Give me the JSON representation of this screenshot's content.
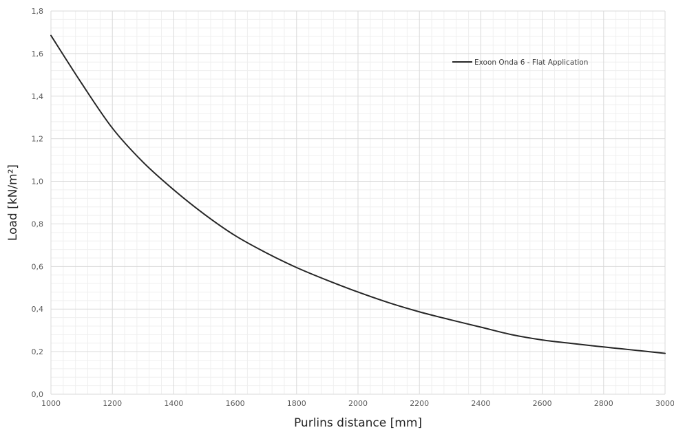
{
  "chart_data": {
    "type": "line",
    "title": "",
    "xlabel": "Purlins distance [mm]",
    "ylabel": "Load [kN/m²]",
    "xlim": [
      1000,
      3000
    ],
    "ylim": [
      0,
      1.8
    ],
    "x_ticks": [
      "1000",
      "1200",
      "1400",
      "1600",
      "1800",
      "2000",
      "2200",
      "2400",
      "2600",
      "2800",
      "3000"
    ],
    "y_ticks": [
      "0,0",
      "0,2",
      "0,4",
      "0,6",
      "0,8",
      "1,0",
      "1,2",
      "1,4",
      "1,6",
      "1,8"
    ],
    "grid": true,
    "legend_position": "top-right",
    "series": [
      {
        "name": "Exoon Onda 6 - Flat Application",
        "color": "#262626",
        "x": [
          1000,
          1100,
          1200,
          1300,
          1400,
          1500,
          1600,
          1700,
          1800,
          1900,
          2000,
          2100,
          2200,
          2300,
          2400,
          2500,
          2600,
          2700,
          2800,
          2900,
          3000
        ],
        "y": [
          1.685,
          1.46,
          1.25,
          1.09,
          0.96,
          0.845,
          0.745,
          0.665,
          0.595,
          0.535,
          0.48,
          0.43,
          0.387,
          0.35,
          0.315,
          0.28,
          0.255,
          0.238,
          0.222,
          0.207,
          0.192
        ]
      }
    ]
  }
}
